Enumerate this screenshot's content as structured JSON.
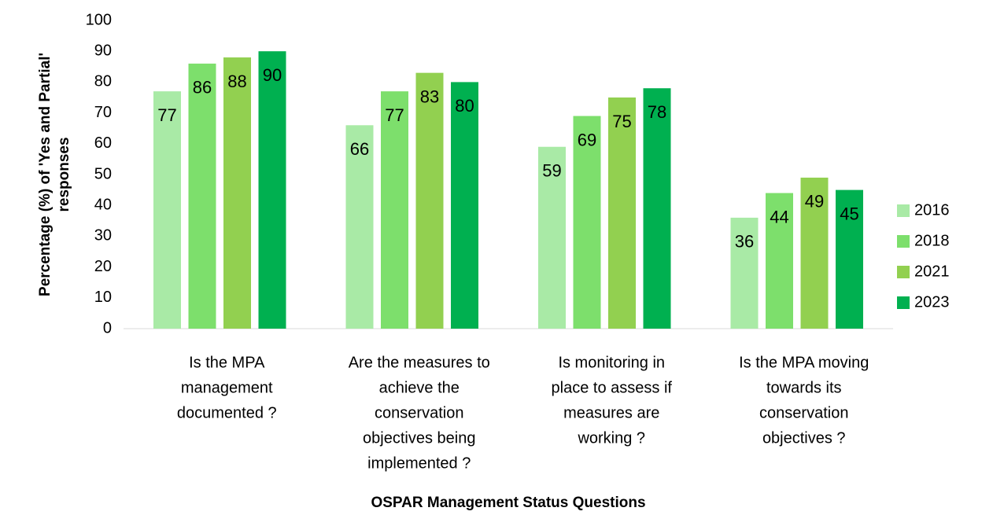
{
  "chart_data": {
    "type": "bar",
    "xlabel": "OSPAR Management Status Questions",
    "ylabel": [
      "Percentage (%) of 'Yes and Partial'",
      "responses"
    ],
    "categories": [
      [
        "Is the MPA",
        "management",
        "documented ?"
      ],
      [
        "Are the measures to",
        "achieve the",
        "conservation",
        "objectives being",
        "implemented ?"
      ],
      [
        "Is monitoring in",
        "place to assess if",
        "measures are",
        "working ?"
      ],
      [
        "Is the MPA moving",
        "towards its",
        "conservation",
        "objectives ?"
      ]
    ],
    "series": [
      {
        "name": "2016",
        "color": "#a9eaa6",
        "values": [
          77,
          66,
          59,
          36
        ]
      },
      {
        "name": "2018",
        "color": "#7ddf6c",
        "values": [
          86,
          77,
          69,
          44
        ]
      },
      {
        "name": "2021",
        "color": "#92d050",
        "values": [
          88,
          83,
          75,
          49
        ]
      },
      {
        "name": "2023",
        "color": "#00b050",
        "values": [
          90,
          80,
          78,
          45
        ]
      }
    ],
    "ylim": [
      0,
      100
    ],
    "yticks": [
      0,
      10,
      20,
      30,
      40,
      50,
      60,
      70,
      80,
      90,
      100
    ],
    "legend": "right",
    "grid": false
  }
}
